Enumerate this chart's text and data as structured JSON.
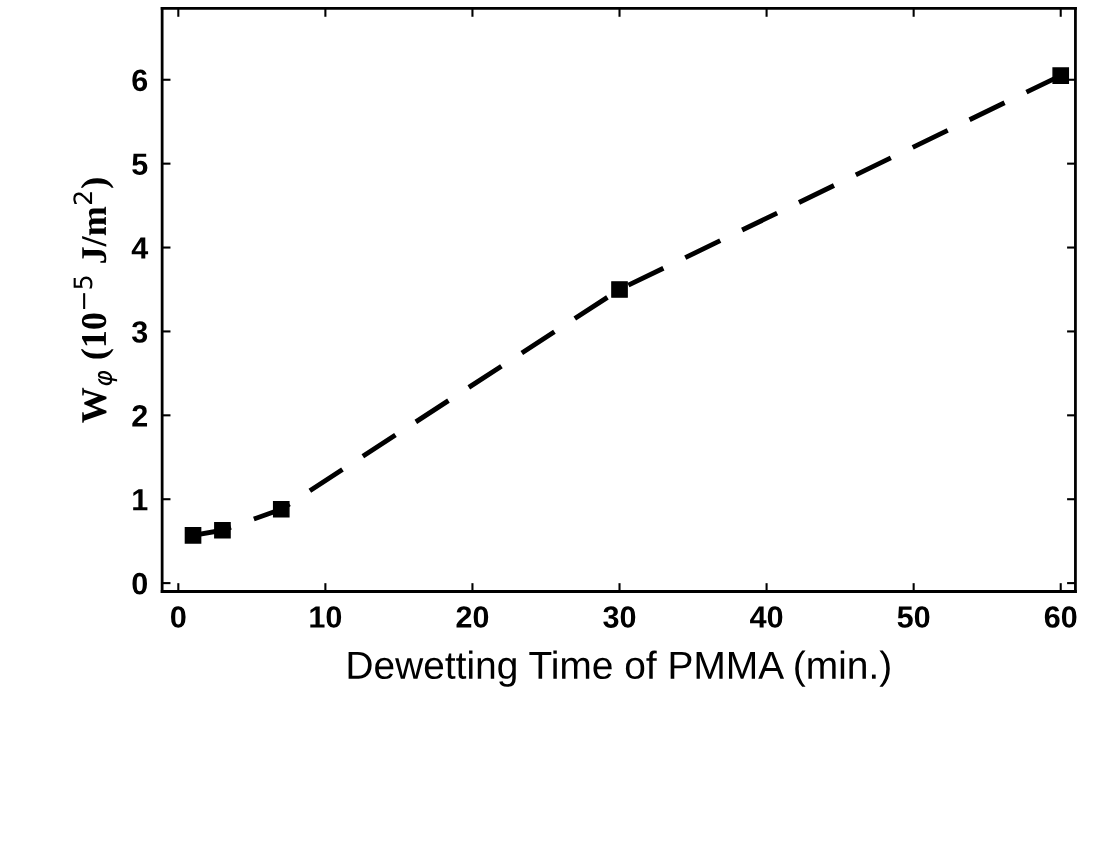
{
  "chart_data": {
    "type": "line",
    "xlabel": "Dewetting Time of PMMA (min.)",
    "ylabel": "W$_{φ}$ (10$^{−5}$ J/m$^{2}$)",
    "x": [
      1,
      3,
      7,
      30,
      60
    ],
    "series": [
      {
        "color": "#000000",
        "values": [
          0.57,
          0.63,
          0.88,
          3.5,
          6.05
        ]
      }
    ],
    "xlim": [
      -1.1,
      61
    ],
    "ylim": [
      -0.1,
      6.85
    ],
    "xticks": [
      0,
      10,
      20,
      30,
      40,
      50,
      60
    ],
    "yticks": [
      0,
      1,
      2,
      3,
      4,
      5,
      6
    ],
    "marker": "square",
    "line_style": "dashed",
    "grid": false,
    "legend": false
  }
}
